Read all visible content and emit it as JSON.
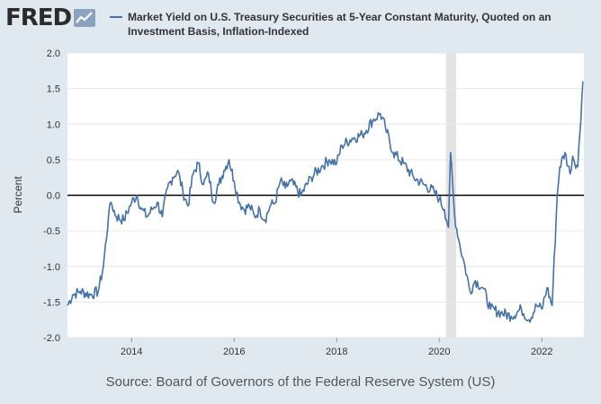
{
  "brand": {
    "name": "FRED",
    "icon": "fred-chart-icon"
  },
  "colors": {
    "series": "#4572a7",
    "background": "#e1e9f0",
    "plot": "#ffffff",
    "recession": "#e3e3e3",
    "zero_line": "#000000"
  },
  "source": "Source: Board of Governors of the Federal Reserve System (US)",
  "chart_data": {
    "type": "line",
    "title": "",
    "ylabel": "Percent",
    "xlabel": "",
    "xlim": [
      2012.75,
      2022.82
    ],
    "ylim": [
      -2.0,
      2.0
    ],
    "yticks": [
      -2.0,
      -1.5,
      -1.0,
      -0.5,
      0.0,
      0.5,
      1.0,
      1.5,
      2.0
    ],
    "ytick_labels": [
      "-2.0",
      "-1.5",
      "-1.0",
      "-0.5",
      "0.0",
      "0.5",
      "1.0",
      "1.5",
      "2.0"
    ],
    "xticks": [
      2014,
      2016,
      2018,
      2020,
      2022
    ],
    "xtick_labels": [
      "2014",
      "2016",
      "2018",
      "2020",
      "2022"
    ],
    "grid": "horizontal",
    "legend": "top",
    "recessions": [
      [
        2020.13,
        2020.33
      ]
    ],
    "reference_line": 0.0,
    "series": [
      {
        "name": "Market Yield on U.S. Treasury Securities at 5-Year Constant Maturity, Quoted on an Investment Basis, Inflation-Indexed",
        "x": [
          2012.75,
          2012.85,
          2013.0,
          2013.2,
          2013.35,
          2013.45,
          2013.55,
          2013.6,
          2013.7,
          2013.85,
          2014.0,
          2014.1,
          2014.2,
          2014.3,
          2014.4,
          2014.5,
          2014.6,
          2014.7,
          2014.8,
          2014.9,
          2015.0,
          2015.1,
          2015.2,
          2015.3,
          2015.4,
          2015.5,
          2015.6,
          2015.7,
          2015.8,
          2015.9,
          2016.0,
          2016.1,
          2016.2,
          2016.3,
          2016.4,
          2016.5,
          2016.6,
          2016.7,
          2016.8,
          2016.9,
          2017.0,
          2017.1,
          2017.3,
          2017.5,
          2017.7,
          2017.85,
          2018.0,
          2018.1,
          2018.3,
          2018.5,
          2018.7,
          2018.85,
          2018.95,
          2019.1,
          2019.3,
          2019.5,
          2019.7,
          2019.9,
          2020.0,
          2020.1,
          2020.18,
          2020.22,
          2020.3,
          2020.4,
          2020.5,
          2020.6,
          2020.7,
          2020.85,
          2021.0,
          2021.2,
          2021.4,
          2021.6,
          2021.75,
          2021.9,
          2022.0,
          2022.1,
          2022.2,
          2022.3,
          2022.35,
          2022.45,
          2022.55,
          2022.6,
          2022.7,
          2022.8
        ],
        "y": [
          -1.55,
          -1.4,
          -1.35,
          -1.4,
          -1.35,
          -1.0,
          -0.3,
          -0.1,
          -0.3,
          -0.35,
          -0.1,
          0.0,
          -0.2,
          -0.3,
          -0.2,
          -0.1,
          -0.3,
          0.1,
          0.25,
          0.35,
          0.05,
          -0.15,
          0.3,
          0.45,
          0.15,
          0.3,
          -0.1,
          0.15,
          0.35,
          0.5,
          0.2,
          -0.1,
          -0.2,
          -0.15,
          -0.3,
          -0.2,
          -0.35,
          -0.15,
          -0.1,
          0.2,
          0.1,
          0.2,
          0.0,
          0.25,
          0.4,
          0.5,
          0.45,
          0.7,
          0.8,
          0.85,
          1.05,
          1.15,
          0.95,
          0.6,
          0.45,
          0.25,
          0.15,
          0.05,
          -0.05,
          -0.2,
          -0.45,
          0.6,
          -0.3,
          -0.7,
          -1.0,
          -1.35,
          -1.2,
          -1.3,
          -1.6,
          -1.65,
          -1.7,
          -1.6,
          -1.75,
          -1.55,
          -1.6,
          -1.3,
          -1.55,
          0.0,
          0.4,
          0.6,
          0.3,
          0.55,
          0.4,
          1.6
        ]
      }
    ]
  }
}
